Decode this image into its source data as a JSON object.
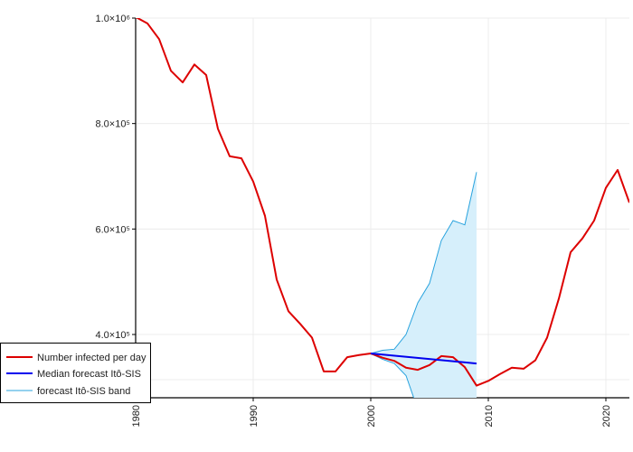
{
  "chart_data": {
    "type": "line",
    "title": "",
    "xlabel": "",
    "ylabel": "",
    "xlim": [
      1980,
      2022
    ],
    "ylim": [
      280000,
      1000000
    ],
    "x_ticks": [
      1980,
      1990,
      2000,
      2010,
      2020
    ],
    "y_ticks": [
      400000,
      600000,
      800000,
      1000000
    ],
    "y_tick_labels": [
      "4.0×10⁵",
      "6.0×10⁵",
      "8.0×10⁵",
      "1.0×10⁶"
    ],
    "grid": true,
    "legend_position": "bottom-left",
    "series": [
      {
        "name": "Number infected per day",
        "color": "#dd0000",
        "x": [
          1980,
          1981,
          1982,
          1983,
          1984,
          1985,
          1986,
          1987,
          1988,
          1989,
          1990,
          1991,
          1992,
          1993,
          1994,
          1995,
          1996,
          1997,
          1998,
          1999,
          2000,
          2001,
          2002,
          2003,
          2004,
          2005,
          2006,
          2007,
          2008,
          2009,
          2010,
          2011,
          2012,
          2013,
          2014,
          2015,
          2016,
          2017,
          2018,
          2019,
          2020,
          2021,
          2022
        ],
        "values": [
          1002000,
          990000,
          960000,
          900000,
          878000,
          912000,
          892000,
          790000,
          738000,
          734000,
          690000,
          625000,
          504000,
          444000,
          420000,
          394000,
          330000,
          330000,
          357000,
          361000,
          364000,
          356000,
          350000,
          337000,
          333000,
          342000,
          359000,
          357000,
          338000,
          303000,
          312000,
          325000,
          337000,
          335000,
          351000,
          394000,
          468000,
          556000,
          582000,
          616000,
          678000,
          712000,
          650000
        ]
      },
      {
        "name": "Median forecast Itô-SIS",
        "color": "#0000ee",
        "x": [
          2000,
          2009
        ],
        "values": [
          364000,
          345000
        ]
      },
      {
        "name": "forecast Itô-SIS band",
        "color": "#29a3de",
        "fill": "#d6effb",
        "x": [
          2000,
          2001,
          2002,
          2003,
          2004,
          2005,
          2006,
          2007,
          2008,
          2009
        ],
        "upper": [
          364000,
          370000,
          372000,
          400000,
          460000,
          497000,
          578000,
          616000,
          608000,
          708000
        ],
        "lower": [
          364000,
          353000,
          345000,
          322000,
          258000,
          255000,
          242000,
          232000,
          230000,
          160000
        ]
      }
    ]
  }
}
